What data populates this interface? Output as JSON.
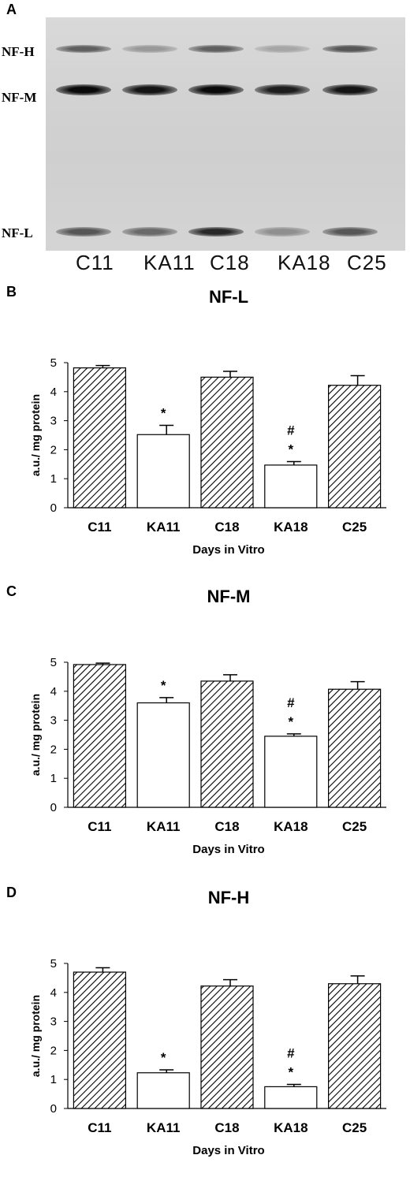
{
  "panel_a": {
    "letter": "A",
    "bands": [
      "NF-H",
      "NF-M",
      "NF-L"
    ],
    "lanes": [
      "C11",
      "KA11",
      "C18",
      "KA18",
      "C25"
    ],
    "band_intensity": {
      "NF-H": [
        0.55,
        0.25,
        0.55,
        0.18,
        0.6
      ],
      "NF-M": [
        1.0,
        0.95,
        1.0,
        0.9,
        0.95
      ],
      "NF-L": [
        0.6,
        0.5,
        0.85,
        0.3,
        0.6
      ]
    }
  },
  "chart_data": [
    {
      "letter": "B",
      "type": "bar",
      "title": "NF-L",
      "xlabel": "Days in Vitro",
      "ylabel": "a.u./ mg protein",
      "ylim": [
        0,
        5
      ],
      "yticks": [
        "0",
        "1",
        "2",
        "3",
        "4",
        "5"
      ],
      "categories": [
        "C11",
        "KA11",
        "C18",
        "KA18",
        "C25"
      ],
      "values": [
        4.82,
        2.52,
        4.5,
        1.47,
        4.22
      ],
      "errors": [
        0.08,
        0.32,
        0.2,
        0.12,
        0.33
      ],
      "fill": [
        "hatched",
        "white",
        "hatched",
        "white",
        "hatched"
      ],
      "annotations": [
        "",
        "*",
        "",
        "#\n*",
        ""
      ]
    },
    {
      "letter": "C",
      "type": "bar",
      "title": "NF-M",
      "xlabel": "Days in Vitro",
      "ylabel": "a.u./ mg protein",
      "ylim": [
        0,
        5
      ],
      "yticks": [
        "0",
        "1",
        "2",
        "3",
        "4",
        "5"
      ],
      "categories": [
        "C11",
        "KA11",
        "C18",
        "KA18",
        "C25"
      ],
      "values": [
        4.92,
        3.6,
        4.35,
        2.45,
        4.07
      ],
      "errors": [
        0.05,
        0.18,
        0.22,
        0.08,
        0.26
      ],
      "fill": [
        "hatched",
        "white",
        "hatched",
        "white",
        "hatched"
      ],
      "annotations": [
        "",
        "*",
        "",
        "#\n*",
        ""
      ]
    },
    {
      "letter": "D",
      "type": "bar",
      "title": "NF-H",
      "xlabel": "Days in Vitro",
      "ylabel": "a.u./ mg protein",
      "ylim": [
        0,
        5
      ],
      "yticks": [
        "0",
        "1",
        "2",
        "3",
        "4",
        "5"
      ],
      "categories": [
        "C11",
        "KA11",
        "C18",
        "KA18",
        "C25"
      ],
      "values": [
        4.7,
        1.23,
        4.22,
        0.75,
        4.3
      ],
      "errors": [
        0.15,
        0.1,
        0.22,
        0.08,
        0.27
      ],
      "fill": [
        "hatched",
        "white",
        "hatched",
        "white",
        "hatched"
      ],
      "annotations": [
        "",
        "*",
        "",
        "#\n*",
        ""
      ]
    }
  ]
}
